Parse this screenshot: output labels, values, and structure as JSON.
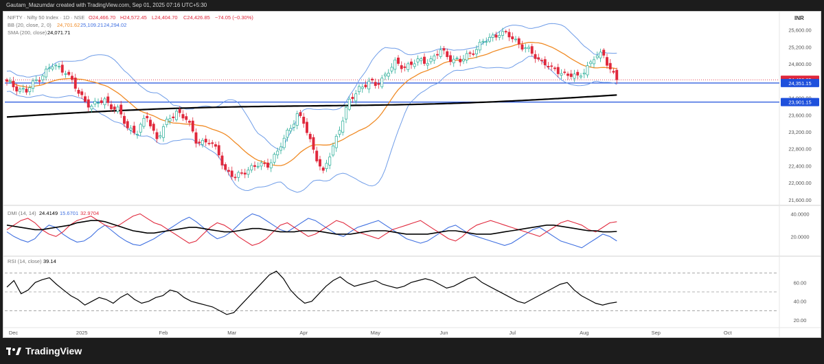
{
  "header": {
    "caption": "Gautam_Mazumdar created with TradingView.com, Sep 01, 2025 07:16 UTC+5:30"
  },
  "legend": {
    "symbol": "NIFTY · Nifty 50 Index · 1D · NSE",
    "ohlc_o": "O24,466.70",
    "ohlc_h": "H24,572.45",
    "ohlc_l": "L24,404.70",
    "ohlc_c": "C24,426.85",
    "change": "−74.05 (−0.30%)",
    "bb_label": "BB (20, close, 2, 0)",
    "bb_basis": "24,701.62",
    "bb_upper": "25,109.21",
    "bb_lower": "24,294.02",
    "sma_label": "SMA (200, close)",
    "sma_value": "24,071.71",
    "dmi_label": "DMI (14, 14)",
    "dmi_adx": "24.4149",
    "dmi_plus": "15.6701",
    "dmi_minus": "32.9704",
    "rsi_label": "RSI (14, close)",
    "rsi_value": "39.14"
  },
  "currency": "INR",
  "price_badges": [
    {
      "text": "24,426.85",
      "value": 24426.85,
      "color": "#e0283c"
    },
    {
      "text": "24,351.15",
      "value": 24351.15,
      "color": "#1e50dc"
    },
    {
      "text": "23,901.15",
      "value": 23901.15,
      "color": "#1e50dc"
    }
  ],
  "footer": {
    "brand": "TradingView"
  },
  "colors": {
    "up": "#22ab94",
    "down": "#e0283c",
    "bb_band": "#6e9ce8",
    "bb_basis": "#f08a24",
    "sma": "#000000",
    "hline": "#1e50dc",
    "dmi_plus": "#3d6ee0",
    "dmi_minus": "#e0283c",
    "adx": "#000000",
    "rsi": "#000000"
  },
  "chart_data": [
    {
      "type": "candlestick",
      "panel": "price",
      "x_ticks": [
        "Dec",
        "2025",
        "Feb",
        "Mar",
        "Apr",
        "May",
        "Jun",
        "Jul",
        "Aug",
        "Sep",
        "Oct"
      ],
      "y_ticks": [
        "25,600.00",
        "25,200.00",
        "24,800.00",
        "24,400.00",
        "24,000.00",
        "23,600.00",
        "23,200.00",
        "22,800.00",
        "22,400.00",
        "22,000.00",
        "21,600.00"
      ],
      "ylim": [
        21500,
        26000
      ],
      "y_scale": "linear",
      "grid": false,
      "path_points": [
        [
          0,
          24350
        ],
        [
          6,
          24150
        ],
        [
          10,
          24500
        ],
        [
          14,
          24750
        ],
        [
          18,
          24650
        ],
        [
          22,
          24100
        ],
        [
          26,
          23800
        ],
        [
          30,
          23950
        ],
        [
          34,
          23700
        ],
        [
          37,
          23300
        ],
        [
          40,
          23200
        ],
        [
          43,
          23550
        ],
        [
          46,
          23050
        ],
        [
          48,
          23300
        ],
        [
          52,
          23700
        ],
        [
          55,
          23500
        ],
        [
          58,
          23000
        ],
        [
          62,
          22950
        ],
        [
          65,
          22700
        ],
        [
          67,
          22300
        ],
        [
          70,
          22100
        ],
        [
          73,
          22300
        ],
        [
          77,
          22400
        ],
        [
          80,
          22450
        ],
        [
          83,
          22700
        ],
        [
          86,
          23200
        ],
        [
          89,
          23600
        ],
        [
          91,
          23400
        ],
        [
          93,
          23000
        ],
        [
          95,
          22600
        ],
        [
          97,
          22200
        ],
        [
          99,
          22650
        ],
        [
          102,
          23300
        ],
        [
          105,
          23900
        ],
        [
          108,
          24250
        ],
        [
          111,
          24350
        ],
        [
          113,
          24300
        ],
        [
          116,
          24550
        ],
        [
          119,
          24800
        ],
        [
          122,
          24750
        ],
        [
          126,
          24850
        ],
        [
          130,
          24900
        ],
        [
          133,
          25100
        ],
        [
          136,
          24950
        ],
        [
          139,
          24850
        ],
        [
          142,
          25050
        ],
        [
          145,
          25250
        ],
        [
          148,
          25400
        ],
        [
          151,
          25550
        ],
        [
          154,
          25450
        ],
        [
          157,
          25300
        ],
        [
          160,
          25100
        ],
        [
          163,
          24900
        ],
        [
          165,
          24850
        ],
        [
          167,
          24650
        ],
        [
          170,
          24600
        ],
        [
          173,
          24550
        ],
        [
          175,
          24450
        ],
        [
          177,
          24650
        ],
        [
          180,
          24950
        ],
        [
          183,
          25000
        ],
        [
          185,
          24700
        ],
        [
          187,
          24450
        ]
      ],
      "horizontal_lines": [
        24351.15,
        23901.15
      ],
      "indicators": [
        {
          "name": "BB (20, close, 2, 0)",
          "basis": 24701.62,
          "upper": 25109.21,
          "lower": 24294.02
        },
        {
          "name": "SMA (200, close)",
          "value": 24071.71
        }
      ]
    },
    {
      "type": "line",
      "panel": "DMI (14, 14)",
      "y_ticks": [
        "40.0000",
        "20.0000"
      ],
      "ylim": [
        5,
        45
      ],
      "series": [
        {
          "name": "+DI",
          "values": [
            24,
            20,
            17,
            15,
            18,
            25,
            30,
            28,
            22,
            18,
            15,
            16,
            20,
            26,
            30,
            25,
            20,
            16,
            13,
            12,
            15,
            18,
            22,
            26,
            30,
            34,
            37,
            33,
            28,
            22,
            18,
            20,
            24,
            30,
            36,
            40,
            38,
            34,
            30,
            26,
            24,
            28,
            32,
            36,
            34,
            30,
            26,
            22,
            20,
            24,
            28,
            30,
            32,
            34,
            30,
            26,
            22,
            18,
            16,
            14,
            16,
            20,
            24,
            28,
            30,
            26,
            22,
            20,
            18,
            16,
            14,
            12,
            14,
            18,
            22,
            26,
            28,
            24,
            20,
            16,
            14,
            12,
            10,
            14,
            18,
            22,
            20,
            16
          ]
        },
        {
          "name": "−DI",
          "values": [
            26,
            30,
            34,
            36,
            32,
            26,
            22,
            20,
            24,
            30,
            34,
            36,
            38,
            34,
            30,
            28,
            30,
            34,
            38,
            40,
            36,
            32,
            30,
            26,
            22,
            18,
            14,
            16,
            22,
            28,
            32,
            30,
            26,
            20,
            16,
            12,
            14,
            18,
            24,
            30,
            32,
            28,
            24,
            20,
            22,
            26,
            30,
            34,
            32,
            28,
            24,
            22,
            20,
            18,
            22,
            26,
            28,
            30,
            32,
            34,
            30,
            26,
            22,
            18,
            16,
            20,
            26,
            30,
            32,
            34,
            32,
            30,
            28,
            26,
            24,
            22,
            20,
            24,
            28,
            32,
            34,
            32,
            30,
            26,
            24,
            28,
            32,
            33
          ]
        },
        {
          "name": "ADX",
          "values": [
            30,
            29,
            28,
            27,
            26,
            26,
            27,
            28,
            29,
            30,
            32,
            33,
            34,
            34,
            33,
            31,
            29,
            27,
            25,
            24,
            23,
            23,
            24,
            25,
            26,
            27,
            28,
            28,
            27,
            26,
            25,
            24,
            24,
            25,
            26,
            27,
            27,
            26,
            25,
            24,
            24,
            24,
            25,
            25,
            25,
            24,
            23,
            22,
            22,
            22,
            23,
            24,
            25,
            25,
            25,
            24,
            23,
            22,
            22,
            22,
            22,
            23,
            24,
            25,
            25,
            24,
            23,
            22,
            22,
            22,
            23,
            24,
            25,
            26,
            27,
            28,
            29,
            30,
            30,
            29,
            28,
            27,
            26,
            25,
            25,
            24,
            24,
            24.41
          ]
        }
      ]
    },
    {
      "type": "line",
      "panel": "RSI (14, close)",
      "y_ticks": [
        "60.00",
        "40.00",
        "20.00"
      ],
      "ylim": [
        15,
        85
      ],
      "levels": [
        70,
        50,
        30
      ],
      "series": [
        {
          "name": "RSI",
          "values": [
            55,
            62,
            48,
            52,
            60,
            63,
            65,
            58,
            52,
            46,
            42,
            36,
            40,
            44,
            42,
            38,
            44,
            48,
            42,
            38,
            40,
            44,
            46,
            52,
            50,
            44,
            40,
            38,
            36,
            34,
            30,
            26,
            28,
            36,
            44,
            52,
            60,
            68,
            72,
            64,
            52,
            44,
            38,
            40,
            48,
            56,
            62,
            66,
            60,
            56,
            58,
            60,
            62,
            58,
            56,
            54,
            56,
            60,
            62,
            64,
            62,
            58,
            54,
            56,
            60,
            64,
            66,
            60,
            56,
            52,
            48,
            44,
            40,
            38,
            42,
            46,
            50,
            54,
            58,
            60,
            52,
            46,
            42,
            38,
            36,
            38,
            39.14
          ]
        }
      ]
    }
  ],
  "x_axis": [
    "Dec",
    "2025",
    "Feb",
    "Mar",
    "Apr",
    "May",
    "Jun",
    "Jul",
    "Aug",
    "Sep",
    "Oct"
  ],
  "rsi_ticks": [
    "60.00",
    "40.00",
    "20.00"
  ],
  "dmi_ticks": [
    "40.0000",
    "20.0000"
  ]
}
